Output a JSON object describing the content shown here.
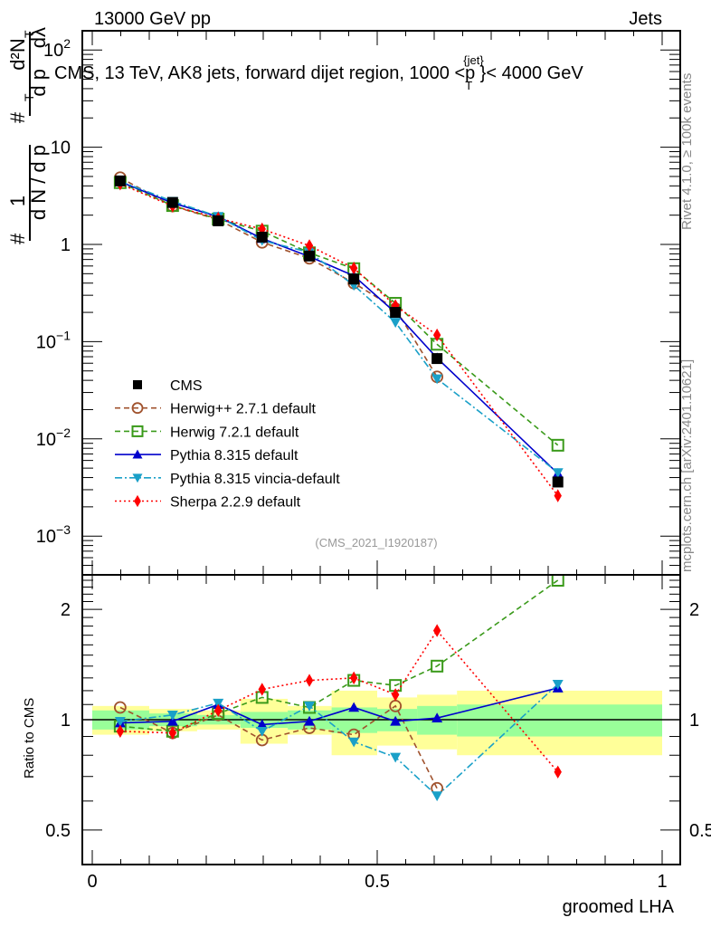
{
  "header": {
    "left": "13000 GeV pp",
    "right": "Jets"
  },
  "side_labels": {
    "rivet": "Rivet 4.1.0, ≥ 100k events",
    "mcplots": "mcplots.cern.ch [arXiv:2401.10621]"
  },
  "chart_data": [
    {
      "type": "line",
      "title": "CMS, 13 TeV, AK8 jets, forward dijet region, 1000 <p_T^{jet}< 4000 GeV",
      "title_main": "CMS, 13 TeV, AK8 jets, forward dijet region, 1000 <p",
      "title_sup": "{jet}",
      "title_sub": "T",
      "title_tail": "}< 4000 GeV",
      "ylabel": "1/N dN/dp_T d²N/dp_T dλ",
      "yscale": "log",
      "ylim": [
        0.0004,
        160
      ],
      "xlim": [
        -0.017,
        1.03
      ],
      "ytick_labels": [
        {
          "value": 100,
          "base": "10",
          "exp": "2"
        },
        {
          "value": 10,
          "base": "10",
          "exp": ""
        },
        {
          "value": 1,
          "base": "1",
          "exp": ""
        },
        {
          "value": 0.1,
          "base": "10",
          "exp": "−1"
        },
        {
          "value": 0.01,
          "base": "10",
          "exp": "−2"
        },
        {
          "value": 0.001,
          "base": "10",
          "exp": "−3"
        }
      ],
      "watermark": "(CMS_2021_I1920187)",
      "x": [
        0.049,
        0.141,
        0.221,
        0.298,
        0.381,
        0.459,
        0.532,
        0.605,
        0.817
      ],
      "bin_edges": [
        0.0,
        0.1,
        0.184,
        0.26,
        0.343,
        0.42,
        0.5,
        0.57,
        0.64,
        1.0
      ],
      "legend_position": "bottom-left",
      "series": [
        {
          "name": "CMS",
          "key": "cms",
          "color": "#000000",
          "marker": "square-filled",
          "dash": "none",
          "values": [
            4.5,
            2.7,
            1.75,
            1.19,
            0.76,
            0.44,
            0.2,
            0.067,
            0.0036
          ]
        },
        {
          "name": "Herwig++ 2.7.1 default",
          "key": "hpp",
          "color": "#a0522d",
          "marker": "circle-open",
          "dash": "6,4",
          "values": [
            4.86,
            2.48,
            1.8,
            1.05,
            0.72,
            0.4,
            0.218,
            0.0435,
            null
          ]
        },
        {
          "name": "Herwig 7.2.1 default",
          "key": "h7",
          "color": "#3a9a1a",
          "marker": "square-open",
          "dash": "6,4",
          "values": [
            4.32,
            2.51,
            1.82,
            1.37,
            0.82,
            0.563,
            0.248,
            0.094,
            0.0086
          ]
        },
        {
          "name": "Pythia 8.315 default",
          "key": "py",
          "color": "#0000cc",
          "marker": "triangle-up",
          "dash": "none",
          "values": [
            4.41,
            2.67,
            1.93,
            1.15,
            0.75,
            0.475,
            0.198,
            0.068,
            0.0044
          ]
        },
        {
          "name": "Pythia 8.315 vincia-default",
          "key": "vin",
          "color": "#1aa0c8",
          "marker": "triangle-down",
          "dash": "8,3,2,3",
          "values": [
            4.46,
            2.78,
            1.94,
            1.1,
            0.83,
            0.38,
            0.158,
            0.0415,
            0.0045
          ]
        },
        {
          "name": "Sherpa 2.2.9 default",
          "key": "sh",
          "color": "#ff0000",
          "marker": "diamond",
          "dash": "2,3",
          "values": [
            4.19,
            2.48,
            1.86,
            1.44,
            0.97,
            0.57,
            0.234,
            0.117,
            0.0026
          ]
        }
      ]
    },
    {
      "type": "line",
      "ylabel": "Ratio to CMS",
      "xlabel": "groomed LHA",
      "yscale": "log",
      "ylim": [
        0.405,
        2.48
      ],
      "xlim": [
        -0.017,
        1.03
      ],
      "ytick_labels": [
        "2",
        "1",
        "0.5"
      ],
      "ytick_values": [
        2,
        1,
        0.5
      ],
      "xtick_labels": [
        "0",
        "0.5",
        "1"
      ],
      "xtick_values": [
        0,
        0.5,
        1
      ],
      "band_inner_color": "#99ff99",
      "band_outer_color": "#ffff99",
      "band_inner": [
        0.06,
        0.04,
        0.03,
        0.05,
        0.06,
        0.08,
        0.07,
        0.09,
        0.1
      ],
      "band_outer": [
        0.09,
        0.07,
        0.06,
        0.14,
        0.09,
        0.2,
        0.15,
        0.17,
        0.2
      ],
      "x": [
        0.049,
        0.141,
        0.221,
        0.298,
        0.381,
        0.459,
        0.532,
        0.605,
        0.817
      ],
      "series": [
        {
          "name": "Herwig++ 2.7.1 default",
          "key": "hpp",
          "values": [
            1.08,
            0.92,
            1.03,
            0.88,
            0.95,
            0.91,
            1.09,
            0.65,
            null
          ]
        },
        {
          "name": "Herwig 7.2.1 default",
          "key": "h7",
          "values": [
            0.96,
            0.93,
            1.04,
            1.15,
            1.08,
            1.28,
            1.24,
            1.4,
            2.4
          ]
        },
        {
          "name": "Pythia 8.315 default",
          "key": "py",
          "values": [
            0.98,
            0.99,
            1.1,
            0.97,
            0.99,
            1.08,
            0.99,
            1.01,
            1.22
          ]
        },
        {
          "name": "Pythia 8.315 vincia-default",
          "key": "vin",
          "values": [
            0.99,
            1.03,
            1.11,
            0.93,
            1.09,
            0.87,
            0.79,
            0.62,
            1.25
          ]
        },
        {
          "name": "Sherpa 2.2.9 default",
          "key": "sh",
          "values": [
            0.93,
            0.92,
            1.06,
            1.21,
            1.28,
            1.3,
            1.17,
            1.75,
            0.72
          ]
        }
      ]
    }
  ]
}
